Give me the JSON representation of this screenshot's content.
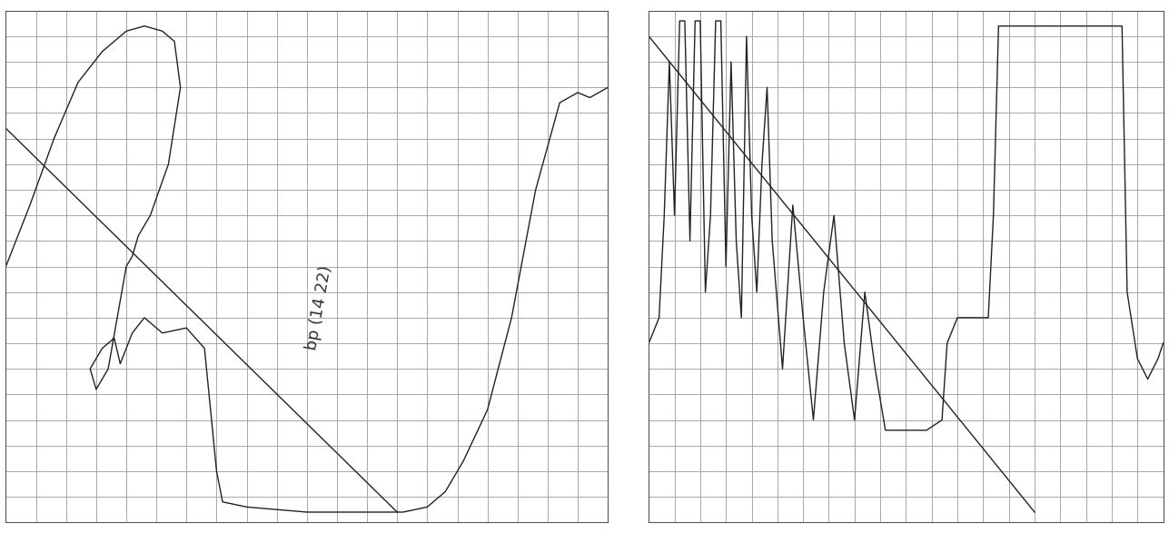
{
  "chart_data": [
    {
      "type": "line",
      "annotations": [
        "bp (14 22)"
      ],
      "xlim": [
        0,
        100
      ],
      "ylim": [
        0,
        100
      ],
      "xticks": [
        0,
        5,
        10,
        15,
        20,
        25,
        30,
        35,
        40,
        45,
        50,
        55,
        60,
        65,
        70,
        75,
        80,
        85,
        90,
        95,
        100
      ],
      "yticks": [
        0,
        5,
        10,
        15,
        20,
        25,
        30,
        35,
        40,
        45,
        50,
        55,
        60,
        65,
        70,
        75,
        80,
        85,
        90,
        95,
        100
      ],
      "grid": true,
      "tick_labels": false,
      "series": [
        {
          "color": "#222222",
          "line_style": "solid",
          "x": [
            0,
            4,
            8,
            12,
            16,
            20,
            23,
            26,
            28,
            29,
            27,
            24,
            22,
            21,
            20,
            17,
            15,
            14,
            16,
            18,
            19,
            21,
            23,
            26,
            30,
            33,
            34,
            35,
            36,
            40,
            50,
            60,
            66,
            70,
            73,
            76,
            80,
            84,
            88,
            92,
            95,
            97,
            100
          ],
          "y": [
            50,
            62,
            75,
            86,
            92,
            96,
            97,
            96,
            94,
            85,
            70,
            60,
            56,
            52,
            50,
            30,
            26,
            30,
            34,
            36,
            31,
            37,
            40,
            37,
            38,
            34,
            22,
            10,
            4,
            3,
            2,
            2,
            2,
            3,
            6,
            12,
            22,
            40,
            65,
            82,
            84,
            83,
            85
          ]
        },
        {
          "color": "#222222",
          "line_style": "solid",
          "x": [
            0,
            65
          ],
          "y": [
            77,
            2
          ]
        }
      ]
    },
    {
      "type": "line",
      "xlim": [
        0,
        100
      ],
      "ylim": [
        0,
        100
      ],
      "xticks": [
        0,
        5,
        10,
        15,
        20,
        25,
        30,
        35,
        40,
        45,
        50,
        55,
        60,
        65,
        70,
        75,
        80,
        85,
        90,
        95,
        100
      ],
      "yticks": [
        0,
        5,
        10,
        15,
        20,
        25,
        30,
        35,
        40,
        45,
        50,
        55,
        60,
        65,
        70,
        75,
        80,
        85,
        90,
        95,
        100
      ],
      "grid": true,
      "tick_labels": false,
      "series": [
        {
          "color": "#222222",
          "line_style": "solid",
          "x": [
            0,
            2,
            3,
            4,
            5,
            6,
            7,
            8,
            9,
            10,
            11,
            12,
            13,
            14,
            15,
            16,
            17,
            18,
            19,
            20,
            21,
            22,
            23,
            24,
            26,
            28,
            30,
            32,
            34,
            36,
            38,
            40,
            42,
            44,
            46,
            50,
            54,
            57,
            58,
            60,
            66,
            67,
            68,
            70,
            74,
            80,
            86,
            90,
            92,
            93,
            95,
            97,
            99,
            100
          ],
          "y": [
            35,
            40,
            60,
            90,
            60,
            98,
            98,
            55,
            98,
            98,
            45,
            60,
            98,
            98,
            50,
            90,
            55,
            40,
            95,
            60,
            45,
            70,
            85,
            55,
            30,
            62,
            40,
            20,
            45,
            60,
            35,
            20,
            45,
            30,
            18,
            18,
            18,
            20,
            35,
            40,
            40,
            60,
            97,
            97,
            97,
            97,
            97,
            97,
            97,
            45,
            32,
            28,
            32,
            35
          ]
        },
        {
          "color": "#222222",
          "line_style": "solid",
          "x": [
            0,
            75
          ],
          "y": [
            95,
            2
          ]
        }
      ]
    }
  ]
}
